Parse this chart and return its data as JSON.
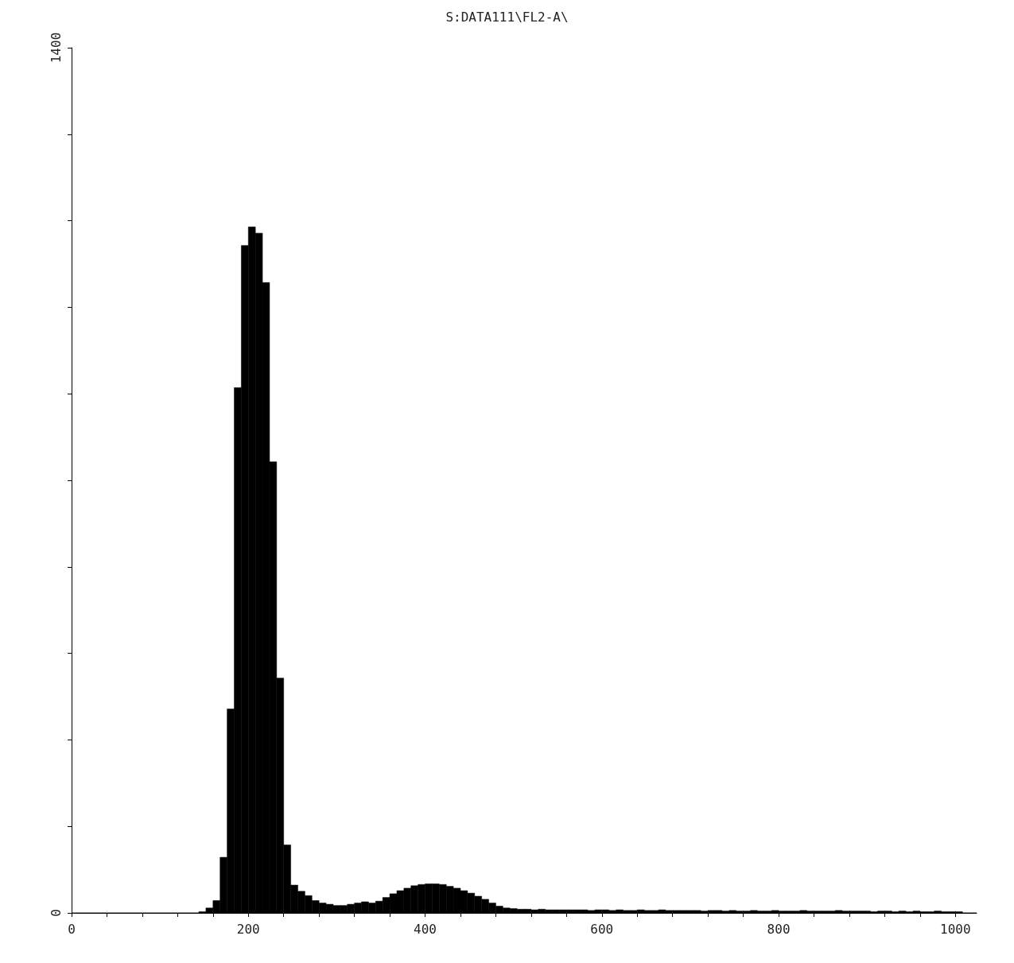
{
  "chart_data": {
    "type": "histogram",
    "title": "S:DATA111\\FL2-A\\",
    "bins": [
      0,
      8,
      16,
      24,
      32,
      40,
      48,
      56,
      64,
      72,
      80,
      88,
      96,
      104,
      112,
      120,
      128,
      136,
      144,
      152,
      160,
      168,
      176,
      184,
      192,
      200,
      208,
      216,
      224,
      232,
      240,
      248,
      256,
      264,
      272,
      280,
      288,
      296,
      304,
      312,
      320,
      328,
      336,
      344,
      352,
      360,
      368,
      376,
      384,
      392,
      400,
      408,
      416,
      424,
      432,
      440,
      448,
      456,
      464,
      472,
      480,
      488,
      496,
      504,
      512,
      520,
      528,
      536,
      544,
      552,
      560,
      568,
      576,
      584,
      592,
      600,
      608,
      616,
      624,
      632,
      640,
      648,
      656,
      664,
      672,
      680,
      688,
      696,
      704,
      712,
      720,
      728,
      736,
      744,
      752,
      760,
      768,
      776,
      784,
      792,
      800,
      808,
      816,
      824,
      832,
      840,
      848,
      856,
      864,
      872,
      880,
      888,
      896,
      904,
      912,
      920,
      928,
      936,
      944,
      952,
      960,
      968,
      976,
      984,
      992,
      1000,
      1008,
      1016,
      1024
    ],
    "values": [
      0,
      0,
      0,
      0,
      0,
      0,
      0,
      0,
      0,
      0,
      0,
      0,
      0,
      0,
      0,
      0,
      0,
      0,
      2,
      8,
      20,
      90,
      330,
      850,
      1080,
      1110,
      1100,
      1020,
      730,
      380,
      110,
      45,
      35,
      28,
      20,
      16,
      14,
      12,
      12,
      14,
      16,
      18,
      16,
      19,
      25,
      31,
      36,
      40,
      44,
      46,
      47,
      47,
      46,
      43,
      40,
      36,
      32,
      27,
      22,
      16,
      11,
      8,
      7,
      6,
      6,
      5,
      6,
      5,
      5,
      5,
      5,
      5,
      5,
      4,
      5,
      5,
      4,
      5,
      4,
      4,
      5,
      4,
      4,
      5,
      4,
      4,
      4,
      4,
      4,
      3,
      4,
      4,
      3,
      4,
      3,
      3,
      4,
      3,
      3,
      4,
      3,
      3,
      3,
      4,
      3,
      3,
      3,
      3,
      4,
      3,
      3,
      3,
      3,
      2,
      3,
      3,
      2,
      3,
      2,
      3,
      2,
      2,
      3,
      2,
      2,
      2,
      0,
      0
    ],
    "color": "#000000",
    "xlim": [
      0,
      1024
    ],
    "xticks": [
      0,
      {
        "value": 40,
        "label": null
      },
      {
        "value": 80,
        "label": null
      },
      {
        "value": 120,
        "label": null
      },
      {
        "value": 160,
        "label": null
      },
      200,
      {
        "value": 240,
        "label": null
      },
      {
        "value": 280,
        "label": null
      },
      {
        "value": 320,
        "label": null
      },
      {
        "value": 360,
        "label": null
      },
      400,
      {
        "value": 440,
        "label": null
      },
      {
        "value": 480,
        "label": null
      },
      {
        "value": 520,
        "label": null
      },
      {
        "value": 560,
        "label": null
      },
      600,
      {
        "value": 640,
        "label": null
      },
      {
        "value": 680,
        "label": null
      },
      {
        "value": 720,
        "label": null
      },
      {
        "value": 760,
        "label": null
      },
      800,
      {
        "value": 840,
        "label": null
      },
      {
        "value": 880,
        "label": null
      },
      {
        "value": 920,
        "label": null
      },
      {
        "value": 960,
        "label": null
      },
      1000
    ],
    "ylim": [
      0,
      1400
    ],
    "yticks": [
      0,
      {
        "value": 140,
        "label": null
      },
      {
        "value": 280,
        "label": null
      },
      {
        "value": 420,
        "label": null
      },
      {
        "value": 560,
        "label": null
      },
      {
        "value": 700,
        "label": null
      },
      {
        "value": 840,
        "label": null
      },
      {
        "value": 980,
        "label": null
      },
      {
        "value": 1120,
        "label": null
      },
      {
        "value": 1260,
        "label": null
      },
      1400
    ],
    "grid": false
  }
}
